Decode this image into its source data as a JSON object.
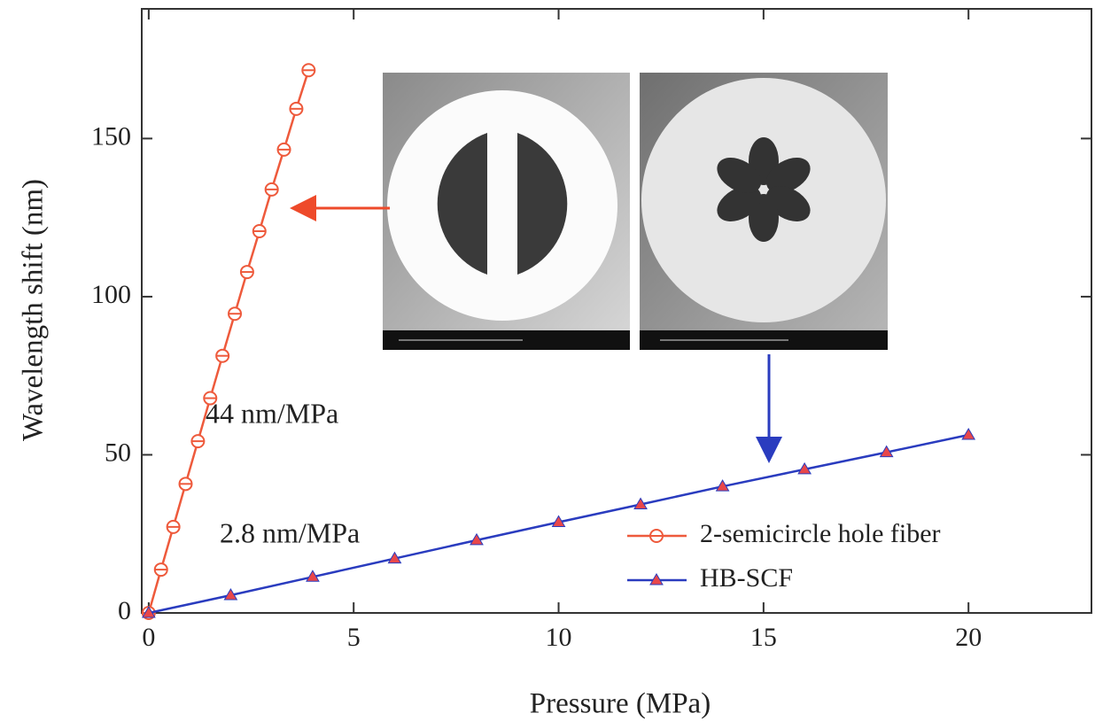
{
  "chart_data": {
    "type": "line",
    "x_label": "Pressure (MPa)",
    "y_label": "Wavelength shift (nm)",
    "xlim": [
      -0.17,
      23.0
    ],
    "ylim": [
      0,
      191
    ],
    "xticks": [
      0,
      5,
      10,
      15,
      20
    ],
    "yticks": [
      0,
      50,
      100,
      150
    ],
    "annotations": [
      "44 nm/MPa",
      "2.8 nm/MPa"
    ],
    "legend": "lower right",
    "series": [
      {
        "name": "2-semicircle hole fiber",
        "color": "#ee5a3c",
        "marker": "circle",
        "x": [
          0,
          0.3,
          0.6,
          0.9,
          1.2,
          1.5,
          1.8,
          2.1,
          2.4,
          2.7,
          3.0,
          3.3,
          3.6,
          3.9
        ],
        "values": [
          0,
          13.7,
          27.2,
          40.8,
          54.3,
          67.9,
          81.3,
          94.6,
          107.8,
          120.7,
          133.9,
          146.5,
          159.4,
          171.6
        ]
      },
      {
        "name": "HB-SCF",
        "color": "#2a3cbf",
        "marker": "triangle",
        "marker_fill": "#e8474a",
        "x": [
          0,
          2,
          4,
          6,
          8,
          10,
          12,
          14,
          16,
          18,
          20
        ],
        "values": [
          0,
          5.6,
          11.4,
          17.2,
          23.0,
          28.7,
          34.3,
          40.0,
          45.4,
          50.8,
          56.3
        ]
      }
    ]
  }
}
